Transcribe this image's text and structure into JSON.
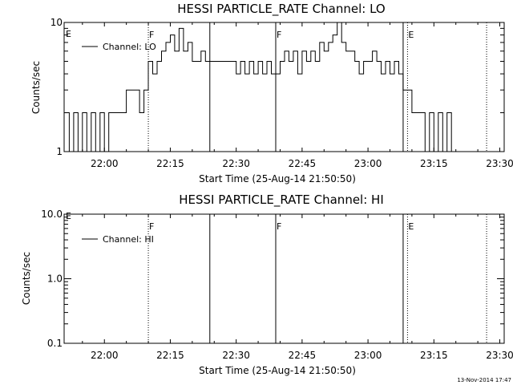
{
  "chart_data": [
    {
      "type": "line",
      "title": "HESSI PARTICLE_RATE Channel: LO",
      "xlabel": "Start Time (25-Aug-14 21:50:50)",
      "ylabel": "Counts/sec",
      "yscale": "log",
      "ylim": [
        1,
        10
      ],
      "xlim": [
        "21:50:50",
        "23:31:00"
      ],
      "yticks": [
        "1",
        "10"
      ],
      "xticks": [
        "22:00",
        "22:15",
        "22:30",
        "22:45",
        "23:00",
        "23:15",
        "23:30"
      ],
      "legend": "Channel: LO",
      "legend_position": "top-left",
      "markers": [
        {
          "time": "22:10:00",
          "label": "F",
          "style": "dotted"
        },
        {
          "time": "22:24:00",
          "label": "",
          "style": "solid"
        },
        {
          "time": "22:39:00",
          "label": "F",
          "style": "solid"
        },
        {
          "time": "23:08:00",
          "label": "",
          "style": "solid"
        },
        {
          "time": "23:09:00",
          "label": "E",
          "style": "dotted"
        },
        {
          "time": "23:27:00",
          "label": "",
          "style": "dotted"
        }
      ],
      "edge_label": "E",
      "series": [
        {
          "name": "Channel: LO",
          "x": [
            "21:51:00",
            "21:52:00",
            "21:53:00",
            "21:54:00",
            "21:55:00",
            "21:56:00",
            "21:57:00",
            "21:58:00",
            "21:59:00",
            "22:00:00",
            "22:01:00",
            "22:02:00",
            "22:03:00",
            "22:04:00",
            "22:05:00",
            "22:06:00",
            "22:07:00",
            "22:08:00",
            "22:09:00",
            "22:10:00",
            "22:11:00",
            "22:12:00",
            "22:13:00",
            "22:14:00",
            "22:15:00",
            "22:16:00",
            "22:17:00",
            "22:18:00",
            "22:19:00",
            "22:20:00",
            "22:21:00",
            "22:22:00",
            "22:23:00",
            "22:24:00",
            "22:25:00",
            "22:26:00",
            "22:27:00",
            "22:28:00",
            "22:29:00",
            "22:30:00",
            "22:31:00",
            "22:32:00",
            "22:33:00",
            "22:34:00",
            "22:35:00",
            "22:36:00",
            "22:37:00",
            "22:38:00",
            "22:39:00",
            "22:40:00",
            "22:41:00",
            "22:42:00",
            "22:43:00",
            "22:44:00",
            "22:45:00",
            "22:46:00",
            "22:47:00",
            "22:48:00",
            "22:49:00",
            "22:50:00",
            "22:51:00",
            "22:52:00",
            "22:53:00",
            "22:54:00",
            "22:55:00",
            "22:56:00",
            "22:57:00",
            "22:58:00",
            "22:59:00",
            "23:00:00",
            "23:01:00",
            "23:02:00",
            "23:03:00",
            "23:04:00",
            "23:05:00",
            "23:06:00",
            "23:07:00",
            "23:08:00",
            "23:09:00",
            "23:10:00",
            "23:11:00",
            "23:12:00",
            "23:13:00",
            "23:14:00",
            "23:15:00",
            "23:16:00",
            "23:17:00",
            "23:18:00",
            "23:19:00",
            "23:20:00"
          ],
          "y": [
            2,
            1,
            2,
            1,
            2,
            1,
            2,
            1,
            2,
            1,
            2,
            2,
            2,
            2,
            3,
            3,
            3,
            2,
            3,
            5,
            4,
            5,
            6,
            7,
            8,
            6,
            9,
            6,
            7,
            5,
            5,
            6,
            5,
            5,
            5,
            5,
            5,
            5,
            5,
            4,
            5,
            4,
            5,
            4,
            5,
            4,
            5,
            4,
            4,
            5,
            6,
            5,
            6,
            4,
            6,
            5,
            6,
            5,
            7,
            6,
            7,
            8,
            10,
            7,
            6,
            6,
            5,
            4,
            5,
            5,
            6,
            5,
            4,
            5,
            4,
            5,
            4,
            3,
            3,
            2,
            2,
            2,
            1,
            2,
            1,
            2,
            1,
            2,
            1,
            1
          ]
        }
      ]
    },
    {
      "type": "line",
      "title": "HESSI PARTICLE_RATE Channel: HI",
      "xlabel": "Start Time (25-Aug-14 21:50:50)",
      "ylabel": "Counts/sec",
      "yscale": "log",
      "ylim": [
        0.1,
        10
      ],
      "xlim": [
        "21:50:50",
        "23:31:00"
      ],
      "yticks": [
        "0.1",
        "1.0",
        "10.0"
      ],
      "xticks": [
        "22:00",
        "22:15",
        "22:30",
        "22:45",
        "23:00",
        "23:15",
        "23:30"
      ],
      "legend": "Channel: HI",
      "legend_position": "top-left",
      "markers": [
        {
          "time": "22:10:00",
          "label": "F",
          "style": "dotted"
        },
        {
          "time": "22:24:00",
          "label": "",
          "style": "solid"
        },
        {
          "time": "22:39:00",
          "label": "F",
          "style": "solid"
        },
        {
          "time": "23:08:00",
          "label": "",
          "style": "solid"
        },
        {
          "time": "23:09:00",
          "label": "E",
          "style": "dotted"
        },
        {
          "time": "23:27:00",
          "label": "",
          "style": "dotted"
        }
      ],
      "edge_label": "E",
      "series": [
        {
          "name": "Channel: HI",
          "x": [],
          "y": []
        }
      ]
    }
  ],
  "footer_timestamp": "13-Nov-2014 17:47"
}
